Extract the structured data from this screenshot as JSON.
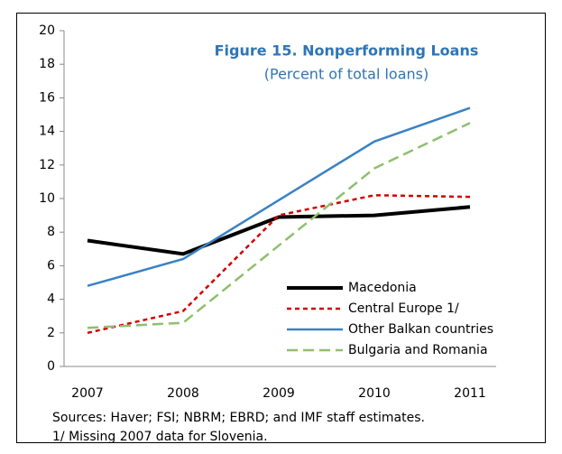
{
  "chart_data": {
    "type": "line",
    "title": "Figure 15. Nonperforming Loans",
    "subtitle": "(Percent of total loans)",
    "categories": [
      "2007",
      "2008",
      "2009",
      "2010",
      "2011"
    ],
    "series": [
      {
        "name": "Macedonia",
        "color": "#000000",
        "dash": "solid",
        "values": [
          7.5,
          6.7,
          8.9,
          9.0,
          9.5
        ]
      },
      {
        "name": "Central Europe 1/",
        "color": "#d00000",
        "dash": "short",
        "values": [
          2.0,
          3.3,
          9.0,
          10.2,
          10.1
        ]
      },
      {
        "name": "Other Balkan countries",
        "color": "#3b82c4",
        "dash": "solid",
        "values": [
          4.8,
          6.4,
          9.9,
          13.4,
          15.4
        ]
      },
      {
        "name": "Bulgaria and Romania",
        "color": "#8fbf6e",
        "dash": "long",
        "values": [
          2.3,
          2.6,
          7.2,
          11.8,
          14.5
        ]
      }
    ],
    "ylim": [
      0,
      20
    ],
    "yticks": [
      0,
      2,
      4,
      6,
      8,
      10,
      12,
      14,
      16,
      18,
      20
    ],
    "legend": "lower right",
    "notes": [
      "Sources:  Haver; FSI; NBRM; EBRD; and IMF staff estimates.",
      "1/ Missing 2007 data for Slovenia."
    ]
  }
}
